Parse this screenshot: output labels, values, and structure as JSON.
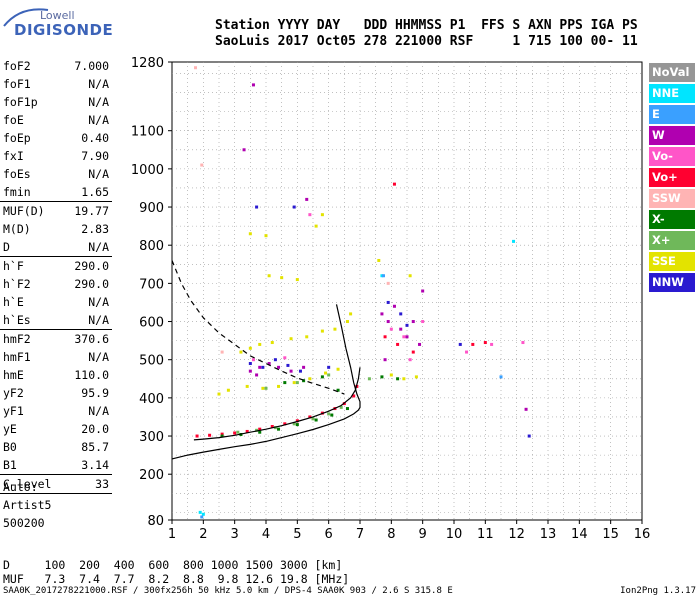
{
  "logo": {
    "line1": "Lowell",
    "line2": "DIGISONDE"
  },
  "header": {
    "line1": "Station YYYY DAY   DDD HHMMSS P1  FFS S AXN PPS IGA PS",
    "line2": "SaoLuis 2017 Oct05 278 221000 RSF     1 715 100 00- 11"
  },
  "params_group1": [
    {
      "label": "foF2",
      "value": "7.000"
    },
    {
      "label": "foF1",
      "value": "N/A"
    },
    {
      "label": "foF1p",
      "value": "N/A"
    },
    {
      "label": "foE",
      "value": "N/A"
    },
    {
      "label": "foEp",
      "value": "0.40"
    },
    {
      "label": "fxI",
      "value": "7.90"
    },
    {
      "label": "foEs",
      "value": "N/A"
    },
    {
      "label": "fmin",
      "value": "1.65"
    }
  ],
  "params_group2": [
    {
      "label": "MUF(D)",
      "value": "19.77"
    },
    {
      "label": "M(D)",
      "value": "2.83"
    },
    {
      "label": "D",
      "value": "N/A"
    }
  ],
  "params_group3": [
    {
      "label": "h`F",
      "value": "290.0"
    },
    {
      "label": "h`F2",
      "value": "290.0"
    },
    {
      "label": "h`E",
      "value": "N/A"
    },
    {
      "label": "h`Es",
      "value": "N/A"
    }
  ],
  "params_group4": [
    {
      "label": "hmF2",
      "value": "370.6"
    },
    {
      "label": "hmF1",
      "value": "N/A"
    },
    {
      "label": "hmE",
      "value": "110.0"
    },
    {
      "label": "yF2",
      "value": "95.9"
    },
    {
      "label": "yF1",
      "value": "N/A"
    },
    {
      "label": "yE",
      "value": "20.0"
    },
    {
      "label": "B0",
      "value": "85.7"
    },
    {
      "label": "B1",
      "value": "3.14"
    }
  ],
  "clevel": {
    "label": "C-level",
    "value": "33"
  },
  "auto": {
    "line1": "Auto:",
    "line2": "Artist5",
    "line3": "500200"
  },
  "legend": [
    {
      "label": "NoVal",
      "color": "#969696"
    },
    {
      "label": "NNE",
      "color": "#00e5ff"
    },
    {
      "label": "E",
      "color": "#3aa0ff"
    },
    {
      "label": "W",
      "color": "#b000b0"
    },
    {
      "label": "Vo-",
      "color": "#ff55c8"
    },
    {
      "label": "Vo+",
      "color": "#ff0030"
    },
    {
      "label": "SSW",
      "color": "#ffb4b4"
    },
    {
      "label": "X-",
      "color": "#007a00"
    },
    {
      "label": "X+",
      "color": "#6fb85a"
    },
    {
      "label": "SSE",
      "color": "#e3e300"
    },
    {
      "label": "NNW",
      "color": "#2a1ad0"
    }
  ],
  "muf_table": {
    "d_row": "D     100  200  400  600  800 1000 1500 3000 [km]",
    "muf_row": "MUF   7.3  7.4  7.7  8.2  8.8  9.8 12.6 19.8 [MHz]"
  },
  "footer": {
    "left": "SAA0K_2017278221000.RSF / 300fx256h 50 kHz 5.0 km / DPS-4 SAA0K 903 / 2.6 S 315.8 E",
    "right": "Ion2Png 1.3.17"
  },
  "chart_data": {
    "type": "scatter",
    "title": "",
    "xlabel": "",
    "ylabel": "",
    "xlim": [
      1,
      16
    ],
    "ylim": [
      80,
      1280
    ],
    "x_ticks": [
      1,
      2,
      3,
      4,
      5,
      6,
      7,
      8,
      9,
      10,
      11,
      12,
      13,
      14,
      15,
      16
    ],
    "y_ticks": [
      80,
      200,
      300,
      400,
      500,
      600,
      700,
      800,
      900,
      1000,
      1100,
      1280
    ],
    "grid": true,
    "series": [
      {
        "name": "SSE",
        "color": "#e3e300",
        "points": [
          [
            3.2,
            520
          ],
          [
            3.5,
            530
          ],
          [
            3.8,
            540
          ],
          [
            4.2,
            545
          ],
          [
            4.8,
            555
          ],
          [
            5.3,
            560
          ],
          [
            5.8,
            575
          ],
          [
            6.2,
            580
          ],
          [
            6.6,
            600
          ],
          [
            3.4,
            430
          ],
          [
            3.9,
            425
          ],
          [
            4.4,
            430
          ],
          [
            4.9,
            440
          ],
          [
            5.4,
            450
          ],
          [
            5.9,
            465
          ],
          [
            6.3,
            475
          ],
          [
            8.0,
            460
          ],
          [
            8.4,
            450
          ],
          [
            8.8,
            455
          ],
          [
            7.6,
            760
          ],
          [
            8.6,
            720
          ],
          [
            4.1,
            720
          ],
          [
            4.5,
            715
          ],
          [
            5.0,
            710
          ],
          [
            5.6,
            850
          ],
          [
            5.8,
            880
          ],
          [
            3.5,
            830
          ],
          [
            4.0,
            825
          ],
          [
            2.8,
            420
          ],
          [
            2.5,
            410
          ],
          [
            6.7,
            620
          ]
        ]
      },
      {
        "name": "W",
        "color": "#b000b0",
        "points": [
          [
            3.5,
            470
          ],
          [
            3.8,
            480
          ],
          [
            4.1,
            490
          ],
          [
            4.4,
            480
          ],
          [
            4.8,
            470
          ],
          [
            5.2,
            480
          ],
          [
            7.7,
            620
          ],
          [
            7.9,
            600
          ],
          [
            8.1,
            640
          ],
          [
            8.3,
            580
          ],
          [
            8.5,
            560
          ],
          [
            8.7,
            600
          ],
          [
            8.9,
            540
          ],
          [
            9.0,
            680
          ],
          [
            7.8,
            500
          ],
          [
            3.7,
            460
          ],
          [
            5.3,
            920
          ],
          [
            3.6,
            1220
          ],
          [
            3.3,
            1050
          ],
          [
            12.3,
            370
          ]
        ]
      },
      {
        "name": "NNW",
        "color": "#2a1ad0",
        "points": [
          [
            3.5,
            490
          ],
          [
            3.9,
            480
          ],
          [
            4.3,
            500
          ],
          [
            4.7,
            485
          ],
          [
            5.1,
            470
          ],
          [
            6.0,
            480
          ],
          [
            7.9,
            650
          ],
          [
            8.3,
            620
          ],
          [
            8.5,
            590
          ],
          [
            12.4,
            300
          ],
          [
            3.7,
            900
          ],
          [
            4.9,
            900
          ],
          [
            10.2,
            540
          ]
        ]
      },
      {
        "name": "Vo+",
        "color": "#ff0030",
        "points": [
          [
            1.8,
            300
          ],
          [
            2.2,
            302
          ],
          [
            2.6,
            305
          ],
          [
            3.0,
            308
          ],
          [
            3.4,
            312
          ],
          [
            3.8,
            318
          ],
          [
            4.2,
            325
          ],
          [
            4.6,
            332
          ],
          [
            5.0,
            340
          ],
          [
            5.4,
            350
          ],
          [
            5.8,
            360
          ],
          [
            6.2,
            372
          ],
          [
            6.5,
            385
          ],
          [
            6.8,
            405
          ],
          [
            6.9,
            430
          ],
          [
            7.8,
            560
          ],
          [
            8.2,
            540
          ],
          [
            8.7,
            520
          ],
          [
            10.6,
            540
          ],
          [
            11.0,
            545
          ],
          [
            8.1,
            960
          ]
        ]
      },
      {
        "name": "X-",
        "color": "#007a00",
        "points": [
          [
            2.6,
            300
          ],
          [
            3.2,
            304
          ],
          [
            3.8,
            310
          ],
          [
            4.4,
            318
          ],
          [
            5.0,
            330
          ],
          [
            5.6,
            342
          ],
          [
            6.1,
            355
          ],
          [
            6.6,
            372
          ],
          [
            4.6,
            440
          ],
          [
            5.2,
            445
          ],
          [
            5.8,
            455
          ],
          [
            6.3,
            420
          ],
          [
            7.7,
            455
          ],
          [
            8.2,
            450
          ]
        ]
      },
      {
        "name": "X+",
        "color": "#6fb85a",
        "points": [
          [
            3.1,
            310
          ],
          [
            3.7,
            315
          ],
          [
            4.3,
            322
          ],
          [
            4.9,
            332
          ],
          [
            5.5,
            345
          ],
          [
            6.0,
            358
          ],
          [
            6.4,
            375
          ],
          [
            4.0,
            425
          ],
          [
            5.0,
            440
          ],
          [
            6.0,
            460
          ],
          [
            7.3,
            450
          ]
        ]
      },
      {
        "name": "Vo-",
        "color": "#ff55c8",
        "points": [
          [
            8.0,
            580
          ],
          [
            8.4,
            560
          ],
          [
            8.6,
            500
          ],
          [
            9.0,
            600
          ],
          [
            3.6,
            500
          ],
          [
            4.6,
            505
          ],
          [
            12.2,
            545
          ],
          [
            11.2,
            540
          ],
          [
            10.4,
            520
          ],
          [
            5.4,
            880
          ]
        ]
      },
      {
        "name": "SSW",
        "color": "#ffb4b4",
        "points": [
          [
            1.75,
            1265
          ],
          [
            1.95,
            1010
          ],
          [
            2.6,
            520
          ],
          [
            7.9,
            700
          ]
        ]
      },
      {
        "name": "NNE",
        "color": "#00e5ff",
        "points": [
          [
            1.9,
            100
          ],
          [
            2.0,
            95
          ],
          [
            7.7,
            720
          ],
          [
            11.9,
            810
          ]
        ]
      },
      {
        "name": "E",
        "color": "#3aa0ff",
        "points": [
          [
            7.75,
            720
          ],
          [
            1.95,
            88
          ],
          [
            11.5,
            455
          ]
        ]
      }
    ],
    "curves": [
      {
        "name": "O trace",
        "color": "#000000",
        "x": [
          1.7,
          2.0,
          2.5,
          3.0,
          3.5,
          4.0,
          4.5,
          5.0,
          5.5,
          6.0,
          6.4,
          6.7,
          6.85,
          6.95,
          7.0
        ],
        "y": [
          290,
          292,
          296,
          302,
          310,
          318,
          327,
          338,
          350,
          365,
          380,
          400,
          420,
          450,
          480
        ]
      },
      {
        "name": "profile",
        "color": "#000000",
        "x": [
          1.0,
          1.5,
          2.0,
          2.5,
          3.0,
          3.5,
          4.0,
          4.5,
          5.0,
          5.5,
          6.0,
          6.5,
          6.8,
          6.95,
          7.0,
          7.0,
          6.9,
          6.8,
          6.7,
          6.55,
          6.4,
          6.25
        ],
        "y": [
          240,
          250,
          258,
          265,
          272,
          278,
          286,
          296,
          306,
          317,
          330,
          345,
          358,
          368,
          375,
          390,
          410,
          440,
          480,
          530,
          590,
          645
        ]
      },
      {
        "name": "MUF",
        "color": "#000000",
        "dashed": true,
        "x": [
          1.0,
          1.3,
          1.6,
          2.0,
          2.5,
          3.0,
          3.5,
          4.0,
          4.5,
          5.0,
          5.5,
          6.0,
          6.5
        ],
        "y": [
          760,
          700,
          655,
          610,
          570,
          540,
          510,
          490,
          470,
          452,
          438,
          425,
          410
        ]
      }
    ]
  }
}
